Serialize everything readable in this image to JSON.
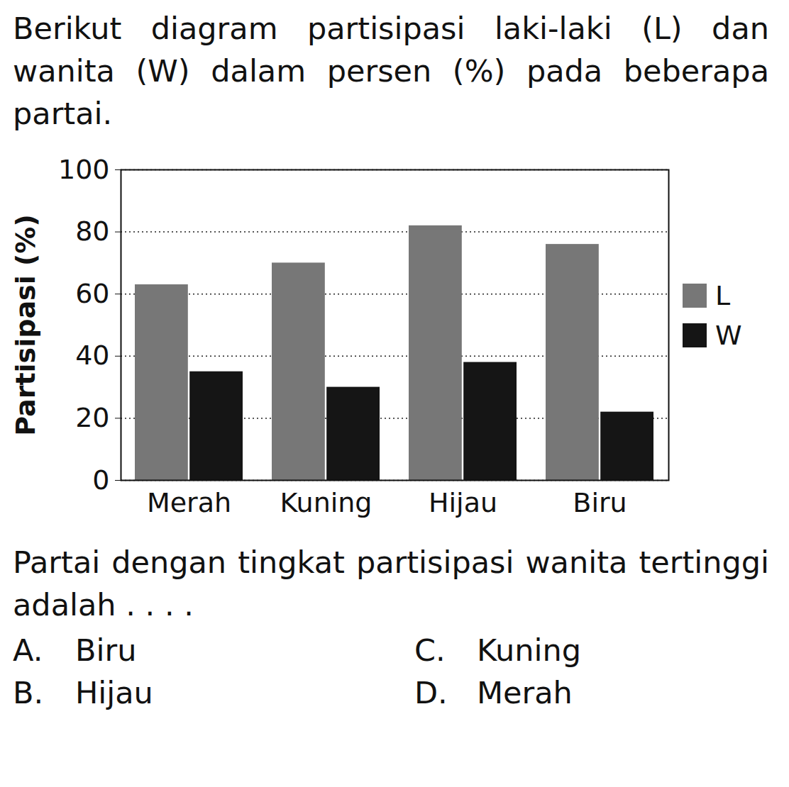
{
  "intro": "Berikut diagram partisipasi laki-laki (L) dan wanita (W) dalam persen (%) pada beberapa partai.",
  "chart_data": {
    "type": "bar",
    "y_label": "Partisipasi (%)",
    "categories": [
      "Merah",
      "Kuning",
      "Hijau",
      "Biru"
    ],
    "series": [
      {
        "name": "L",
        "color": "#777777",
        "values": [
          63,
          70,
          82,
          76
        ]
      },
      {
        "name": "W",
        "color": "#151515",
        "values": [
          35,
          30,
          38,
          22
        ]
      }
    ],
    "ylim": [
      0,
      100
    ],
    "yticks": [
      0,
      20,
      40,
      60,
      80,
      100
    ],
    "grid": true,
    "legend": "right"
  },
  "question": "Partai dengan tingkat partisipasi wanita tertinggi adalah . . . .",
  "options": [
    {
      "letter": "A.",
      "text": "Biru"
    },
    {
      "letter": "B.",
      "text": "Hijau"
    },
    {
      "letter": "C.",
      "text": "Kuning"
    },
    {
      "letter": "D.",
      "text": "Merah"
    }
  ]
}
